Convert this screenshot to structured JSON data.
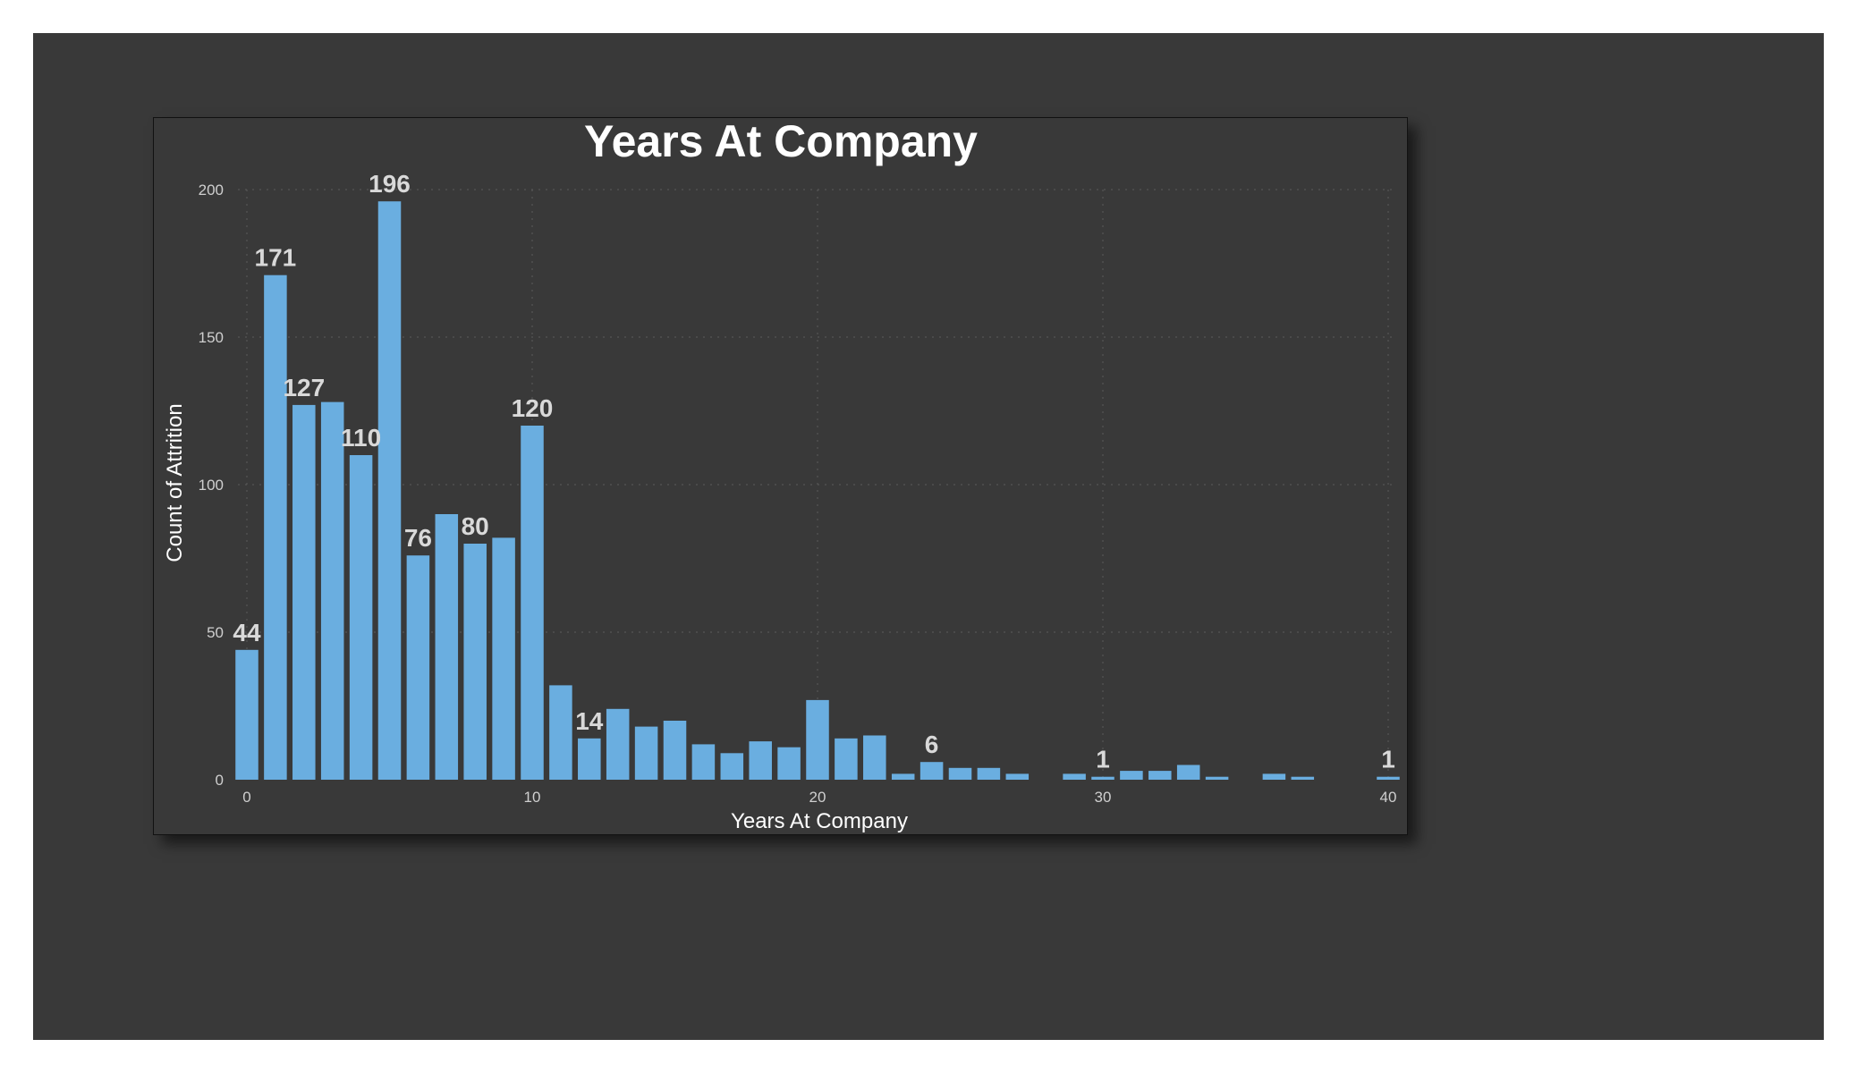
{
  "chart_data": {
    "type": "bar",
    "title": "Years At Company",
    "xlabel": "Years At Company",
    "ylabel": "Count of Attrition",
    "xlim": [
      0,
      40
    ],
    "ylim": [
      0,
      200
    ],
    "x_ticks": [
      0,
      10,
      20,
      30,
      40
    ],
    "y_ticks": [
      0,
      50,
      100,
      150,
      200
    ],
    "grid": true,
    "bar_color": "#6aaee0",
    "x": [
      0,
      1,
      2,
      3,
      4,
      5,
      6,
      7,
      8,
      9,
      10,
      11,
      12,
      13,
      14,
      15,
      16,
      17,
      18,
      19,
      20,
      21,
      22,
      23,
      24,
      25,
      26,
      27,
      29,
      30,
      31,
      32,
      33,
      34,
      36,
      37,
      40
    ],
    "values": [
      44,
      171,
      127,
      128,
      110,
      196,
      76,
      90,
      80,
      82,
      120,
      32,
      14,
      24,
      18,
      20,
      12,
      9,
      13,
      11,
      27,
      14,
      15,
      2,
      6,
      4,
      4,
      2,
      2,
      1,
      3,
      3,
      5,
      1,
      2,
      1,
      1
    ],
    "data_labels": [
      {
        "x": 0,
        "text": "44"
      },
      {
        "x": 1,
        "text": "171"
      },
      {
        "x": 2,
        "text": "127"
      },
      {
        "x": 4,
        "text": "110"
      },
      {
        "x": 5,
        "text": "196"
      },
      {
        "x": 6,
        "text": "76"
      },
      {
        "x": 8,
        "text": "80"
      },
      {
        "x": 10,
        "text": "120"
      },
      {
        "x": 12,
        "text": "14"
      },
      {
        "x": 24,
        "text": "6"
      },
      {
        "x": 30,
        "text": "1"
      },
      {
        "x": 40,
        "text": "1"
      }
    ]
  }
}
